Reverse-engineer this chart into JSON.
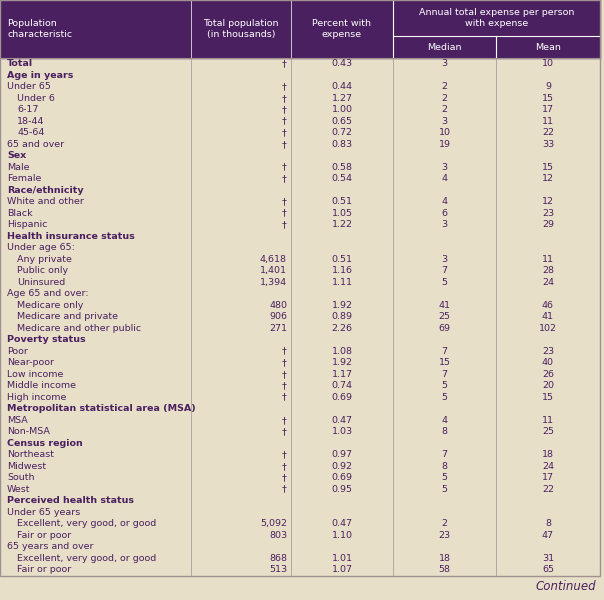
{
  "header_bg": "#4a2060",
  "header_text": "#ffffff",
  "body_bg": "#e8dfc8",
  "body_text": "#4a2060",
  "col_headers_left": [
    "Population\ncharacteristic",
    "Total population\n(in thousands)",
    "Percent with\nexpense"
  ],
  "col_headers_right": [
    "Median",
    "Mean"
  ],
  "span_header": "Annual total expense per person\nwith expense",
  "rows": [
    {
      "label": "Total",
      "indent": 0,
      "bold": true,
      "pop": "†",
      "pct": "0.43",
      "med": "3",
      "mean": "10"
    },
    {
      "label": "Age in years",
      "indent": 0,
      "bold": true,
      "pop": "",
      "pct": "",
      "med": "",
      "mean": ""
    },
    {
      "label": "Under 65",
      "indent": 0,
      "bold": false,
      "pop": "†",
      "pct": "0.44",
      "med": "2",
      "mean": "9"
    },
    {
      "label": "Under 6",
      "indent": 1,
      "bold": false,
      "pop": "†",
      "pct": "1.27",
      "med": "2",
      "mean": "15"
    },
    {
      "label": "6-17",
      "indent": 1,
      "bold": false,
      "pop": "†",
      "pct": "1.00",
      "med": "2",
      "mean": "17"
    },
    {
      "label": "18-44",
      "indent": 1,
      "bold": false,
      "pop": "†",
      "pct": "0.65",
      "med": "3",
      "mean": "11"
    },
    {
      "label": "45-64",
      "indent": 1,
      "bold": false,
      "pop": "†",
      "pct": "0.72",
      "med": "10",
      "mean": "22"
    },
    {
      "label": "65 and over",
      "indent": 0,
      "bold": false,
      "pop": "†",
      "pct": "0.83",
      "med": "19",
      "mean": "33"
    },
    {
      "label": "Sex",
      "indent": 0,
      "bold": true,
      "pop": "",
      "pct": "",
      "med": "",
      "mean": ""
    },
    {
      "label": "Male",
      "indent": 0,
      "bold": false,
      "pop": "†",
      "pct": "0.58",
      "med": "3",
      "mean": "15"
    },
    {
      "label": "Female",
      "indent": 0,
      "bold": false,
      "pop": "†",
      "pct": "0.54",
      "med": "4",
      "mean": "12"
    },
    {
      "label": "Race/ethnicity",
      "indent": 0,
      "bold": true,
      "pop": "",
      "pct": "",
      "med": "",
      "mean": ""
    },
    {
      "label": "White and other",
      "indent": 0,
      "bold": false,
      "pop": "†",
      "pct": "0.51",
      "med": "4",
      "mean": "12"
    },
    {
      "label": "Black",
      "indent": 0,
      "bold": false,
      "pop": "†",
      "pct": "1.05",
      "med": "6",
      "mean": "23"
    },
    {
      "label": "Hispanic",
      "indent": 0,
      "bold": false,
      "pop": "†",
      "pct": "1.22",
      "med": "3",
      "mean": "29"
    },
    {
      "label": "Health insurance status",
      "indent": 0,
      "bold": true,
      "pop": "",
      "pct": "",
      "med": "",
      "mean": ""
    },
    {
      "label": "Under age 65:",
      "indent": 0,
      "bold": false,
      "pop": "",
      "pct": "",
      "med": "",
      "mean": ""
    },
    {
      "label": "Any private",
      "indent": 1,
      "bold": false,
      "pop": "4,618",
      "pct": "0.51",
      "med": "3",
      "mean": "11"
    },
    {
      "label": "Public only",
      "indent": 1,
      "bold": false,
      "pop": "1,401",
      "pct": "1.16",
      "med": "7",
      "mean": "28"
    },
    {
      "label": "Uninsured",
      "indent": 1,
      "bold": false,
      "pop": "1,394",
      "pct": "1.11",
      "med": "5",
      "mean": "24"
    },
    {
      "label": "Age 65 and over:",
      "indent": 0,
      "bold": false,
      "pop": "",
      "pct": "",
      "med": "",
      "mean": ""
    },
    {
      "label": "Medicare only",
      "indent": 1,
      "bold": false,
      "pop": "480",
      "pct": "1.92",
      "med": "41",
      "mean": "46"
    },
    {
      "label": "Medicare and private",
      "indent": 1,
      "bold": false,
      "pop": "906",
      "pct": "0.89",
      "med": "25",
      "mean": "41"
    },
    {
      "label": "Medicare and other public",
      "indent": 1,
      "bold": false,
      "pop": "271",
      "pct": "2.26",
      "med": "69",
      "mean": "102"
    },
    {
      "label": "Poverty status",
      "indent": 0,
      "bold": true,
      "pop": "",
      "pct": "",
      "med": "",
      "mean": ""
    },
    {
      "label": "Poor",
      "indent": 0,
      "bold": false,
      "pop": "†",
      "pct": "1.08",
      "med": "7",
      "mean": "23"
    },
    {
      "label": "Near-poor",
      "indent": 0,
      "bold": false,
      "pop": "†",
      "pct": "1.92",
      "med": "15",
      "mean": "40"
    },
    {
      "label": "Low income",
      "indent": 0,
      "bold": false,
      "pop": "†",
      "pct": "1.17",
      "med": "7",
      "mean": "26"
    },
    {
      "label": "Middle income",
      "indent": 0,
      "bold": false,
      "pop": "†",
      "pct": "0.74",
      "med": "5",
      "mean": "20"
    },
    {
      "label": "High income",
      "indent": 0,
      "bold": false,
      "pop": "†",
      "pct": "0.69",
      "med": "5",
      "mean": "15"
    },
    {
      "label": "Metropolitan statistical area (MSA)",
      "indent": 0,
      "bold": true,
      "pop": "",
      "pct": "",
      "med": "",
      "mean": ""
    },
    {
      "label": "MSA",
      "indent": 0,
      "bold": false,
      "pop": "†",
      "pct": "0.47",
      "med": "4",
      "mean": "11"
    },
    {
      "label": "Non-MSA",
      "indent": 0,
      "bold": false,
      "pop": "†",
      "pct": "1.03",
      "med": "8",
      "mean": "25"
    },
    {
      "label": "Census region",
      "indent": 0,
      "bold": true,
      "pop": "",
      "pct": "",
      "med": "",
      "mean": ""
    },
    {
      "label": "Northeast",
      "indent": 0,
      "bold": false,
      "pop": "†",
      "pct": "0.97",
      "med": "7",
      "mean": "18"
    },
    {
      "label": "Midwest",
      "indent": 0,
      "bold": false,
      "pop": "†",
      "pct": "0.92",
      "med": "8",
      "mean": "24"
    },
    {
      "label": "South",
      "indent": 0,
      "bold": false,
      "pop": "†",
      "pct": "0.69",
      "med": "5",
      "mean": "17"
    },
    {
      "label": "West",
      "indent": 0,
      "bold": false,
      "pop": "†",
      "pct": "0.95",
      "med": "5",
      "mean": "22"
    },
    {
      "label": "Perceived health status",
      "indent": 0,
      "bold": true,
      "pop": "",
      "pct": "",
      "med": "",
      "mean": ""
    },
    {
      "label": "Under 65 years",
      "indent": 0,
      "bold": false,
      "pop": "",
      "pct": "",
      "med": "",
      "mean": ""
    },
    {
      "label": "Excellent, very good, or good",
      "indent": 1,
      "bold": false,
      "pop": "5,092",
      "pct": "0.47",
      "med": "2",
      "mean": "8"
    },
    {
      "label": "Fair or poor",
      "indent": 1,
      "bold": false,
      "pop": "803",
      "pct": "1.10",
      "med": "23",
      "mean": "47"
    },
    {
      "label": "65 years and over",
      "indent": 0,
      "bold": false,
      "pop": "",
      "pct": "",
      "med": "",
      "mean": ""
    },
    {
      "label": "Excellent, very good, or good",
      "indent": 1,
      "bold": false,
      "pop": "868",
      "pct": "1.01",
      "med": "18",
      "mean": "31"
    },
    {
      "label": "Fair or poor",
      "indent": 1,
      "bold": false,
      "pop": "513",
      "pct": "1.07",
      "med": "58",
      "mean": "65"
    }
  ],
  "continued_text": "Continued"
}
